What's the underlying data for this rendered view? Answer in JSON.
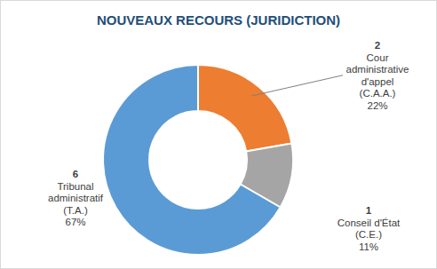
{
  "chart_data": {
    "type": "donut",
    "title": "NOUVEAUX RECOURS (JURIDICTION)",
    "categories": [
      "Cour administrative d'appel (C.A.A.)",
      "Conseil d'État (C.E.)",
      "Tribunal administratif (T.A.)"
    ],
    "values": [
      2,
      1,
      6
    ],
    "colors": [
      "#ed7d31",
      "#a5a5a5",
      "#5b9bd5"
    ],
    "data_labels": true,
    "percent_labels": [
      "22%",
      "11%",
      "67%"
    ]
  }
}
